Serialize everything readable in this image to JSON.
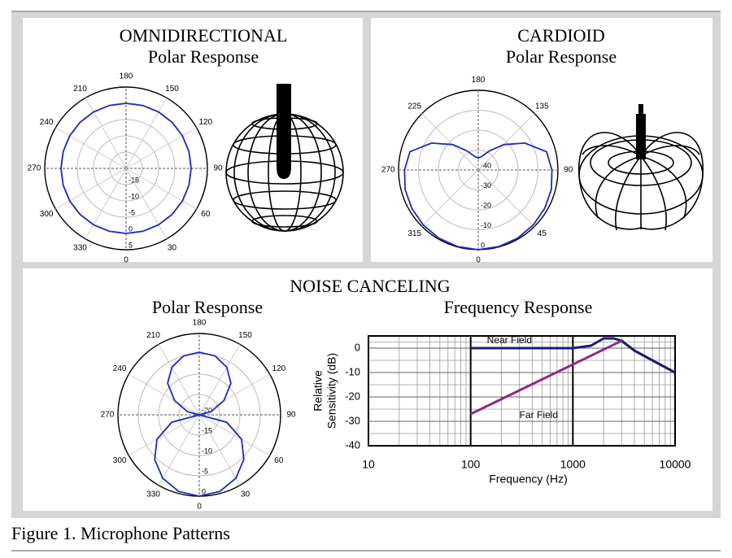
{
  "section_title": "NOISE CANCELING",
  "caption": "Figure 1. Microphone Patterns",
  "chart_data": [
    {
      "type": "polar",
      "title": "OMNIDIRECTIONAL",
      "subtitle": "Polar Response",
      "thetaticks": [
        0,
        30,
        60,
        90,
        120,
        150,
        180,
        210,
        240,
        270,
        300,
        330
      ],
      "rlim": [
        -20,
        5
      ],
      "rticks": [
        -15,
        -10,
        -5,
        0,
        5
      ],
      "theta": [
        0,
        15,
        30,
        45,
        60,
        75,
        90,
        105,
        120,
        135,
        150,
        165,
        180,
        195,
        210,
        225,
        240,
        255,
        270,
        285,
        300,
        315,
        330,
        345
      ],
      "values": [
        0,
        0,
        0,
        0,
        0,
        0,
        0,
        0,
        0,
        0,
        0,
        0,
        0,
        0,
        0,
        0,
        0,
        0,
        0,
        0,
        0,
        0,
        0,
        0
      ],
      "color": "#1f2bb8"
    },
    {
      "type": "polar",
      "title": "CARDIOID",
      "subtitle": "Polar Response",
      "thetaticks": [
        0,
        45,
        90,
        135,
        180,
        225,
        270,
        315
      ],
      "rlim": [
        -40,
        0
      ],
      "rticks": [
        -40,
        -30,
        -20,
        -10,
        0
      ],
      "theta": [
        0,
        15,
        30,
        45,
        60,
        75,
        90,
        105,
        120,
        135,
        150,
        165,
        180,
        195,
        210,
        225,
        240,
        255,
        270,
        285,
        300,
        315,
        330,
        345
      ],
      "values": [
        0,
        -0.2,
        -0.5,
        -1,
        -1.5,
        -2,
        -3,
        -4.5,
        -13,
        -22,
        -29,
        -33,
        -34,
        -33,
        -29,
        -22,
        -13,
        -4.5,
        -3,
        -2,
        -1.5,
        -1,
        -0.5,
        -0.2
      ],
      "color": "#1f2bb8"
    },
    {
      "type": "polar",
      "subtitle": "Polar Response",
      "thetaticks": [
        0,
        30,
        60,
        90,
        120,
        150,
        180,
        210,
        240,
        270,
        300,
        330
      ],
      "rlim": [
        -20,
        0
      ],
      "rticks": [
        -20,
        -15,
        -10,
        -5,
        0
      ],
      "theta": [
        0,
        15,
        30,
        45,
        60,
        75,
        90,
        105,
        120,
        135,
        150,
        165,
        180,
        195,
        210,
        225,
        240,
        255,
        270,
        285,
        300,
        315,
        330,
        345
      ],
      "values": [
        0,
        -0.5,
        -2,
        -4.5,
        -8,
        -13,
        -20,
        -17,
        -13,
        -9,
        -6.5,
        -5,
        -4.6,
        -5,
        -6.5,
        -9,
        -13,
        -17,
        -20,
        -13,
        -8,
        -4.5,
        -2,
        -0.5
      ],
      "color": "#1f2bb8"
    },
    {
      "type": "line",
      "title": "Frequency Response",
      "xlabel": "Frequency (Hz)",
      "ylabel": [
        "Relative",
        "Sensitivity (dB)"
      ],
      "xscale": "log",
      "xlim": [
        10,
        10000
      ],
      "xticks": [
        10,
        100,
        1000,
        10000
      ],
      "ylim": [
        -40,
        5
      ],
      "yticks": [
        -40,
        -30,
        -20,
        -10,
        0
      ],
      "grid": true,
      "series": [
        {
          "name": "Near Field",
          "color": "#1c1c6e",
          "x": [
            100,
            1000,
            1500,
            2000,
            2500,
            3000,
            4000,
            6000,
            10000
          ],
          "values": [
            0,
            0,
            1,
            4,
            4,
            3,
            -1,
            -5,
            -10
          ]
        },
        {
          "name": "Far Field",
          "color": "#8e2a86",
          "x": [
            100,
            3000
          ],
          "values": [
            -27,
            3
          ]
        }
      ]
    }
  ]
}
